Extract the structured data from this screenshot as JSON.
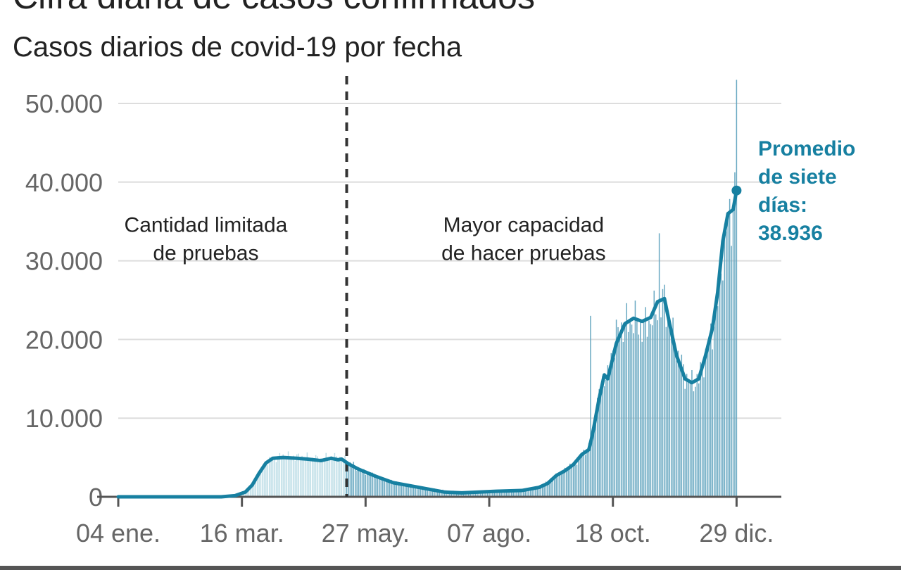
{
  "header": {
    "title": "Cifra diaria de casos confirmados",
    "subtitle": "Casos diarios de covid-19 por fecha"
  },
  "colors": {
    "bars_limited": "#bcdde6",
    "bars_testing": "#6aa9c2",
    "line": "#1780a1",
    "gridline": "#dddddd",
    "axis": "#555555",
    "tick_text": "#666666",
    "annotation_text": "#222222",
    "callout_text": "#1780a1",
    "divider": "#333333"
  },
  "chart_data": {
    "type": "bar",
    "title": "Cifra diaria de casos confirmados",
    "subtitle": "Casos diarios de covid-19 por fecha",
    "xlabel": "",
    "ylabel": "",
    "ylim": [
      0,
      50000
    ],
    "grid": true,
    "y_ticks": [
      {
        "value": 0,
        "label": "0"
      },
      {
        "value": 10000,
        "label": "10.000"
      },
      {
        "value": 20000,
        "label": "20.000"
      },
      {
        "value": 30000,
        "label": "30.000"
      },
      {
        "value": 40000,
        "label": "40.000"
      },
      {
        "value": 50000,
        "label": "50.000"
      }
    ],
    "x_ticks": [
      {
        "day": 0,
        "label": "04 ene."
      },
      {
        "day": 72,
        "label": "16 mar."
      },
      {
        "day": 144,
        "label": "27 may."
      },
      {
        "day": 216,
        "label": "07 ago."
      },
      {
        "day": 288,
        "label": "18 oct."
      },
      {
        "day": 360,
        "label": "29 dic."
      }
    ],
    "divider_day": 133,
    "annotations": [
      {
        "lines": [
          "Cantidad limitada",
          "de pruebas"
        ],
        "day": 51,
        "value": 37000
      },
      {
        "lines": [
          "Mayor capacidad",
          "de hacer pruebas"
        ],
        "day": 236,
        "value": 37000
      }
    ],
    "callout": {
      "lines": [
        "Promedio",
        "de siete",
        "días:",
        "38.936"
      ],
      "day": 360,
      "value": 38936
    },
    "series": [
      {
        "name": "Casos diarios",
        "kind": "bars",
        "points": [
          [
            0,
            0
          ],
          [
            60,
            0
          ],
          [
            68,
            150
          ],
          [
            74,
            600
          ],
          [
            78,
            1500
          ],
          [
            82,
            3000
          ],
          [
            86,
            4300
          ],
          [
            90,
            4900
          ],
          [
            96,
            5200
          ],
          [
            104,
            5100
          ],
          [
            110,
            5000
          ],
          [
            118,
            4800
          ],
          [
            124,
            5100
          ],
          [
            130,
            4900
          ],
          [
            134,
            4500
          ],
          [
            140,
            3500
          ],
          [
            150,
            2600
          ],
          [
            160,
            1900
          ],
          [
            175,
            1200
          ],
          [
            190,
            800
          ],
          [
            200,
            600
          ],
          [
            210,
            700
          ],
          [
            220,
            800
          ],
          [
            235,
            900
          ],
          [
            245,
            1200
          ],
          [
            250,
            1900
          ],
          [
            255,
            2800
          ],
          [
            260,
            3400
          ],
          [
            265,
            4200
          ],
          [
            270,
            5400
          ],
          [
            274,
            6200
          ],
          [
            276,
            8000
          ],
          [
            280,
            13000
          ],
          [
            283,
            15500
          ],
          [
            285,
            15000
          ],
          [
            287,
            18000
          ],
          [
            290,
            20500
          ],
          [
            295,
            22000
          ],
          [
            300,
            22500
          ],
          [
            305,
            21500
          ],
          [
            310,
            22500
          ],
          [
            314,
            24000
          ],
          [
            318,
            25000
          ],
          [
            321,
            22000
          ],
          [
            325,
            18500
          ],
          [
            330,
            15500
          ],
          [
            334,
            14500
          ],
          [
            338,
            15000
          ],
          [
            342,
            18000
          ],
          [
            346,
            21000
          ],
          [
            349,
            25000
          ],
          [
            352,
            31000
          ],
          [
            355,
            35000
          ],
          [
            358,
            37000
          ],
          [
            360,
            40000
          ]
        ]
      },
      {
        "name": "Promedio de siete días",
        "kind": "line",
        "points": [
          [
            0,
            0
          ],
          [
            60,
            0
          ],
          [
            68,
            150
          ],
          [
            74,
            600
          ],
          [
            78,
            1500
          ],
          [
            82,
            3000
          ],
          [
            86,
            4300
          ],
          [
            90,
            4900
          ],
          [
            96,
            5000
          ],
          [
            104,
            4900
          ],
          [
            110,
            4800
          ],
          [
            118,
            4600
          ],
          [
            124,
            4900
          ],
          [
            128,
            4700
          ],
          [
            130,
            4800
          ],
          [
            134,
            4200
          ],
          [
            140,
            3500
          ],
          [
            150,
            2600
          ],
          [
            160,
            1800
          ],
          [
            175,
            1200
          ],
          [
            190,
            600
          ],
          [
            200,
            500
          ],
          [
            210,
            600
          ],
          [
            220,
            700
          ],
          [
            235,
            800
          ],
          [
            245,
            1200
          ],
          [
            250,
            1700
          ],
          [
            255,
            2700
          ],
          [
            260,
            3300
          ],
          [
            265,
            4100
          ],
          [
            270,
            5400
          ],
          [
            274,
            6000
          ],
          [
            276,
            7800
          ],
          [
            280,
            12500
          ],
          [
            283,
            15500
          ],
          [
            285,
            15000
          ],
          [
            287,
            16800
          ],
          [
            290,
            19500
          ],
          [
            295,
            22000
          ],
          [
            300,
            22700
          ],
          [
            305,
            22300
          ],
          [
            310,
            22800
          ],
          [
            314,
            24800
          ],
          [
            318,
            25200
          ],
          [
            321,
            22000
          ],
          [
            325,
            18000
          ],
          [
            330,
            15000
          ],
          [
            334,
            14500
          ],
          [
            338,
            15000
          ],
          [
            342,
            18000
          ],
          [
            346,
            21500
          ],
          [
            349,
            26000
          ],
          [
            352,
            32500
          ],
          [
            355,
            36000
          ],
          [
            358,
            36500
          ],
          [
            360,
            38936
          ]
        ]
      }
    ]
  }
}
